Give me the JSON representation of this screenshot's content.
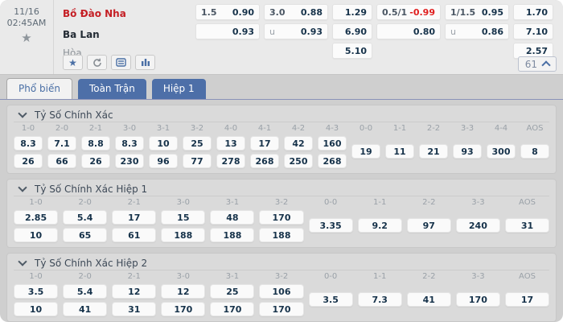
{
  "match": {
    "date": "11/16",
    "time": "02:45AM",
    "home": "Bồ Đào Nha",
    "away": "Ba Lan",
    "draw": "Hòa",
    "market_count": "61"
  },
  "odds": {
    "hdp_ft": {
      "r1_line": "1.5",
      "r1_odds": "0.90",
      "r2_line": "",
      "r2_odds": "0.93"
    },
    "ou_ft": {
      "r1_line": "3.0",
      "r1_odds": "0.88",
      "r2_line": "u",
      "r2_odds": "0.93"
    },
    "x12_ft": {
      "home": "1.29",
      "away": "6.90",
      "draw": "5.10"
    },
    "hdp_h1": {
      "r1_line": "0.5/1",
      "r1_odds": "-0.99",
      "r2_line": "",
      "r2_odds": "0.80"
    },
    "ou_h1": {
      "r1_line": "1/1.5",
      "r1_odds": "0.95",
      "r2_line": "u",
      "r2_odds": "0.86"
    },
    "x12_h1": {
      "home": "1.70",
      "away": "7.10",
      "draw": "2.57"
    }
  },
  "tabs": [
    {
      "label": "Phổ biến",
      "active": true
    },
    {
      "label": "Toàn Trận",
      "active": false
    },
    {
      "label": "Hiệp 1",
      "active": false
    }
  ],
  "colors": {
    "accent_blue": "#4a6fa5",
    "team_red": "#c41e24",
    "neg_red": "#e01f1f"
  },
  "sections": [
    {
      "title": "Tỷ Số Chính Xác",
      "columns": [
        {
          "header": "1-0",
          "values": [
            "8.3",
            "26"
          ]
        },
        {
          "header": "2-0",
          "values": [
            "7.1",
            "66"
          ]
        },
        {
          "header": "2-1",
          "values": [
            "8.8",
            "26"
          ]
        },
        {
          "header": "3-0",
          "values": [
            "8.3",
            "230"
          ]
        },
        {
          "header": "3-1",
          "values": [
            "10",
            "96"
          ]
        },
        {
          "header": "3-2",
          "values": [
            "25",
            "77"
          ]
        },
        {
          "header": "4-0",
          "values": [
            "13",
            "278"
          ]
        },
        {
          "header": "4-1",
          "values": [
            "17",
            "268"
          ]
        },
        {
          "header": "4-2",
          "values": [
            "42",
            "250"
          ]
        },
        {
          "header": "4-3",
          "values": [
            "160",
            "268"
          ]
        },
        {
          "header": "0-0",
          "values": [
            "19"
          ]
        },
        {
          "header": "1-1",
          "values": [
            "11"
          ]
        },
        {
          "header": "2-2",
          "values": [
            "21"
          ]
        },
        {
          "header": "3-3",
          "values": [
            "93"
          ]
        },
        {
          "header": "4-4",
          "values": [
            "300"
          ]
        },
        {
          "header": "AOS",
          "values": [
            "8"
          ]
        }
      ]
    },
    {
      "title": "Tỷ Số Chính Xác Hiệp 1",
      "columns": [
        {
          "header": "1-0",
          "values": [
            "2.85",
            "10"
          ]
        },
        {
          "header": "2-0",
          "values": [
            "5.4",
            "65"
          ]
        },
        {
          "header": "2-1",
          "values": [
            "17",
            "61"
          ]
        },
        {
          "header": "3-0",
          "values": [
            "15",
            "188"
          ]
        },
        {
          "header": "3-1",
          "values": [
            "48",
            "188"
          ]
        },
        {
          "header": "3-2",
          "values": [
            "170",
            "188"
          ]
        },
        {
          "header": "0-0",
          "values": [
            "3.35"
          ]
        },
        {
          "header": "1-1",
          "values": [
            "9.2"
          ]
        },
        {
          "header": "2-2",
          "values": [
            "97"
          ]
        },
        {
          "header": "3-3",
          "values": [
            "240"
          ]
        },
        {
          "header": "AOS",
          "values": [
            "31"
          ]
        }
      ]
    },
    {
      "title": "Tỷ Số Chính Xác Hiệp 2",
      "columns": [
        {
          "header": "1-0",
          "values": [
            "3.5",
            "10"
          ]
        },
        {
          "header": "2-0",
          "values": [
            "5.4",
            "41"
          ]
        },
        {
          "header": "2-1",
          "values": [
            "12",
            "31"
          ]
        },
        {
          "header": "3-0",
          "values": [
            "12",
            "170"
          ]
        },
        {
          "header": "3-1",
          "values": [
            "25",
            "170"
          ]
        },
        {
          "header": "3-2",
          "values": [
            "106",
            "170"
          ]
        },
        {
          "header": "0-0",
          "values": [
            "3.5"
          ]
        },
        {
          "header": "1-1",
          "values": [
            "7.3"
          ]
        },
        {
          "header": "2-2",
          "values": [
            "41"
          ]
        },
        {
          "header": "3-3",
          "values": [
            "170"
          ]
        },
        {
          "header": "AOS",
          "values": [
            "17"
          ]
        }
      ]
    }
  ]
}
